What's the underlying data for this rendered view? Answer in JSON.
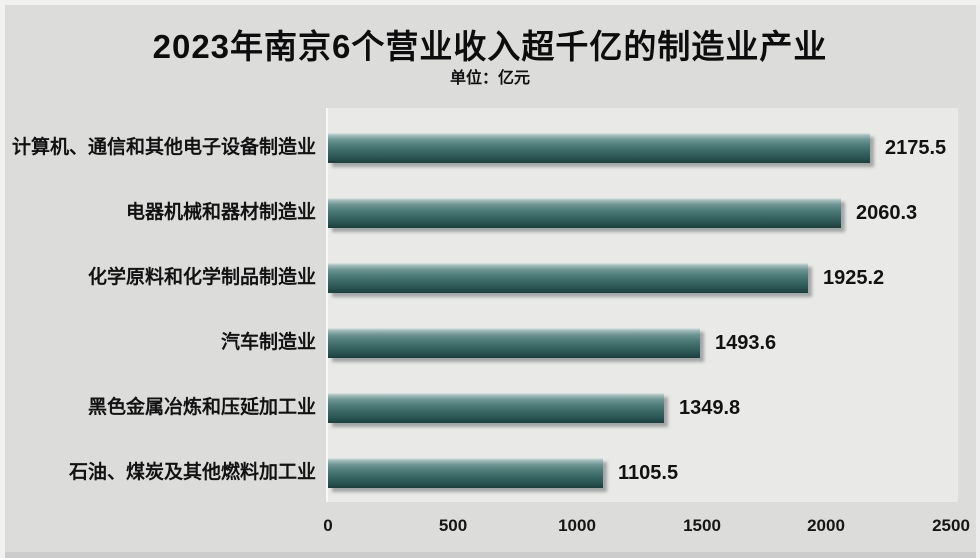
{
  "title": "2023年南京6个营业收入超千亿的制造业产业",
  "subtitle": "单位：亿元",
  "chart_data": {
    "type": "bar",
    "orientation": "horizontal",
    "title": "2023年南京6个营业收入超千亿的制造业产业",
    "subtitle": "单位：亿元",
    "categories": [
      "计算机、通信和其他电子设备制造业",
      "电器机械和器材制造业",
      "化学原料和化学制品制造业",
      "汽车制造业",
      "黑色金属冶炼和压延加工业",
      "石油、煤炭及其他燃料加工业"
    ],
    "values": [
      2175.5,
      2060.3,
      1925.2,
      1493.6,
      1349.8,
      1105.5
    ],
    "x_ticks": [
      0,
      500,
      1000,
      1500,
      2000,
      2500
    ],
    "xlim": [
      0,
      2500
    ],
    "xlabel": "",
    "ylabel": "",
    "grid": false,
    "legend": false,
    "colors": {
      "bar_mid": "#4d7b78",
      "bar_dark": "#1b3d3b",
      "bar_light": "#dde7e6",
      "page_background": "#dcdddb",
      "plot_background": "#e9eae8",
      "text": "#121212"
    }
  }
}
